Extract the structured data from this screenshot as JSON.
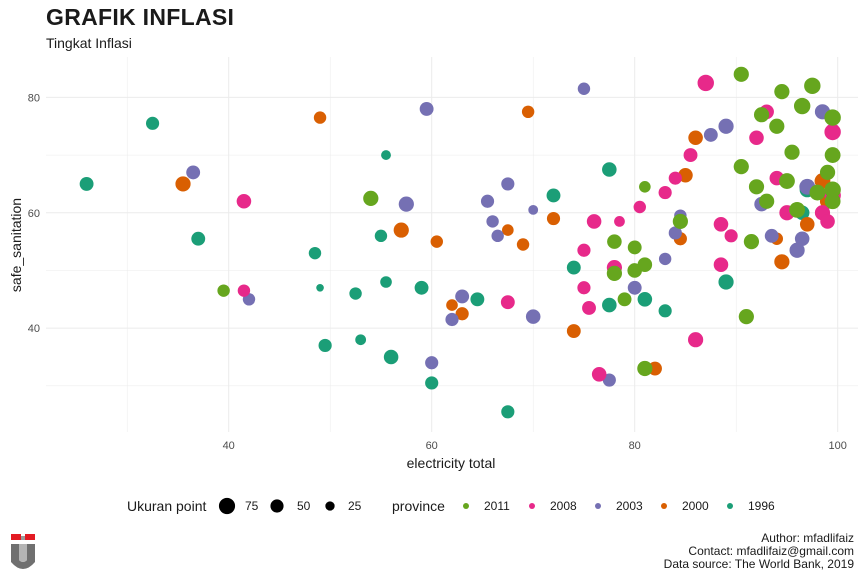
{
  "title": "GRAFIK INFLASI",
  "subtitle": "Tingkat Inflasi",
  "caption": {
    "author": "Author: mfadlifaiz",
    "contact": "Contact: mfadlifaiz@gmail.com",
    "source": "Data source: The World Bank, 2019"
  },
  "chart_data": {
    "type": "scatter",
    "xlabel": "electricity total",
    "ylabel": "safe_sanitation",
    "xlim": [
      22,
      102
    ],
    "ylim": [
      22,
      87
    ],
    "xticks": [
      40,
      60,
      80,
      100
    ],
    "yticks": [
      40,
      60,
      80
    ],
    "grid": true,
    "legend_position": "bottom",
    "size_legend": {
      "title": "Ukuran point",
      "entries": [
        75,
        50,
        25
      ]
    },
    "color_legend": {
      "title": "province",
      "entries": [
        {
          "label": "2011",
          "color": "#66a61e"
        },
        {
          "label": "2008",
          "color": "#e7298a"
        },
        {
          "label": "2003",
          "color": "#7570b3"
        },
        {
          "label": "2000",
          "color": "#d95f02"
        },
        {
          "label": "1996",
          "color": "#1b9e77"
        }
      ]
    },
    "series": [
      {
        "name": "1996",
        "color": "#1b9e77",
        "points": [
          [
            26,
            65,
            50
          ],
          [
            32.5,
            75.5,
            45
          ],
          [
            37,
            55.5,
            50
          ],
          [
            48.5,
            53,
            40
          ],
          [
            49,
            47,
            15
          ],
          [
            49.5,
            37,
            45
          ],
          [
            52.5,
            46,
            40
          ],
          [
            53,
            38,
            30
          ],
          [
            55,
            56,
            40
          ],
          [
            55.5,
            48,
            35
          ],
          [
            55.5,
            70,
            25
          ],
          [
            56,
            35,
            55
          ],
          [
            59,
            47,
            50
          ],
          [
            60,
            30.5,
            45
          ],
          [
            64.5,
            45,
            50
          ],
          [
            67.5,
            25.5,
            45
          ],
          [
            72,
            63,
            50
          ],
          [
            74,
            50.5,
            50
          ],
          [
            77.5,
            67.5,
            55
          ],
          [
            77.5,
            44,
            55
          ],
          [
            81,
            45,
            55
          ],
          [
            83,
            43,
            45
          ],
          [
            89,
            48,
            60
          ],
          [
            96.5,
            60,
            55
          ],
          [
            97,
            64,
            60
          ]
        ]
      },
      {
        "name": "2000",
        "color": "#d95f02",
        "points": [
          [
            35.5,
            65,
            60
          ],
          [
            49,
            76.5,
            40
          ],
          [
            57,
            57,
            60
          ],
          [
            60.5,
            55,
            40
          ],
          [
            62,
            44,
            35
          ],
          [
            63,
            42.5,
            45
          ],
          [
            67.5,
            57,
            35
          ],
          [
            69,
            54.5,
            40
          ],
          [
            69.5,
            77.5,
            40
          ],
          [
            72,
            59,
            45
          ],
          [
            74,
            39.5,
            50
          ],
          [
            82,
            33,
            50
          ],
          [
            84.5,
            55.5,
            45
          ],
          [
            85,
            66.5,
            55
          ],
          [
            86,
            73,
            55
          ],
          [
            94,
            55.5,
            40
          ],
          [
            94.5,
            51.5,
            60
          ],
          [
            97,
            58,
            55
          ],
          [
            98.5,
            65.5,
            65
          ],
          [
            99,
            62,
            60
          ]
        ]
      },
      {
        "name": "2003",
        "color": "#7570b3",
        "points": [
          [
            36.5,
            67,
            50
          ],
          [
            42,
            45,
            40
          ],
          [
            57.5,
            61.5,
            60
          ],
          [
            59.5,
            78,
            50
          ],
          [
            60,
            34,
            45
          ],
          [
            62,
            41.5,
            45
          ],
          [
            63,
            45.5,
            50
          ],
          [
            65.5,
            62,
            45
          ],
          [
            66,
            58.5,
            40
          ],
          [
            66.5,
            56,
            40
          ],
          [
            67.5,
            65,
            45
          ],
          [
            70,
            42,
            55
          ],
          [
            70,
            60.5,
            25
          ],
          [
            75,
            81.5,
            40
          ],
          [
            77.5,
            31,
            45
          ],
          [
            80,
            47,
            50
          ],
          [
            83,
            52,
            40
          ],
          [
            84,
            56.5,
            45
          ],
          [
            84.5,
            59.5,
            40
          ],
          [
            87.5,
            73.5,
            50
          ],
          [
            89,
            75,
            60
          ],
          [
            92.5,
            61.5,
            55
          ],
          [
            93.5,
            56,
            50
          ],
          [
            96,
            53.5,
            60
          ],
          [
            96.5,
            55.5,
            55
          ],
          [
            97,
            64.5,
            65
          ],
          [
            98.5,
            77.5,
            60
          ]
        ]
      },
      {
        "name": "2008",
        "color": "#e7298a",
        "points": [
          [
            41.5,
            62,
            55
          ],
          [
            41.5,
            46.5,
            40
          ],
          [
            67.5,
            44.5,
            50
          ],
          [
            75,
            53.5,
            45
          ],
          [
            75,
            47,
            45
          ],
          [
            75.5,
            43.5,
            50
          ],
          [
            76,
            58.5,
            55
          ],
          [
            76.5,
            32,
            55
          ],
          [
            78,
            50.5,
            60
          ],
          [
            78.5,
            58.5,
            30
          ],
          [
            80.5,
            61,
            40
          ],
          [
            83,
            63.5,
            45
          ],
          [
            84,
            66,
            45
          ],
          [
            85.5,
            70,
            50
          ],
          [
            86,
            38,
            60
          ],
          [
            87,
            82.5,
            70
          ],
          [
            88.5,
            58,
            55
          ],
          [
            88.5,
            51,
            55
          ],
          [
            89.5,
            56,
            45
          ],
          [
            92,
            73,
            55
          ],
          [
            93,
            77.5,
            55
          ],
          [
            94,
            66,
            55
          ],
          [
            95,
            60,
            60
          ],
          [
            98.5,
            60,
            60
          ],
          [
            99,
            58.5,
            55
          ],
          [
            99.5,
            63,
            70
          ],
          [
            99.5,
            74,
            70
          ]
        ]
      },
      {
        "name": "2011",
        "color": "#66a61e",
        "points": [
          [
            39.5,
            46.5,
            40
          ],
          [
            54,
            62.5,
            60
          ],
          [
            78,
            55,
            55
          ],
          [
            78,
            49.5,
            60
          ],
          [
            79,
            45,
            50
          ],
          [
            80,
            54,
            50
          ],
          [
            80,
            50,
            55
          ],
          [
            81,
            51,
            55
          ],
          [
            81,
            33,
            60
          ],
          [
            81,
            64.5,
            35
          ],
          [
            84.5,
            58.5,
            60
          ],
          [
            90.5,
            84,
            60
          ],
          [
            90.5,
            68,
            60
          ],
          [
            91,
            42,
            60
          ],
          [
            91.5,
            55,
            60
          ],
          [
            92,
            64.5,
            60
          ],
          [
            92.5,
            77,
            60
          ],
          [
            93,
            62,
            60
          ],
          [
            94,
            75,
            60
          ],
          [
            94.5,
            81,
            60
          ],
          [
            95,
            65.5,
            65
          ],
          [
            95.5,
            70.5,
            60
          ],
          [
            96,
            60.5,
            65
          ],
          [
            96.5,
            78.5,
            70
          ],
          [
            97.5,
            82,
            70
          ],
          [
            98,
            63.5,
            65
          ],
          [
            99.5,
            76.5,
            70
          ],
          [
            99.5,
            70,
            65
          ],
          [
            99.5,
            64,
            70
          ],
          [
            99.5,
            62,
            65
          ],
          [
            99,
            67,
            60
          ]
        ]
      }
    ]
  }
}
